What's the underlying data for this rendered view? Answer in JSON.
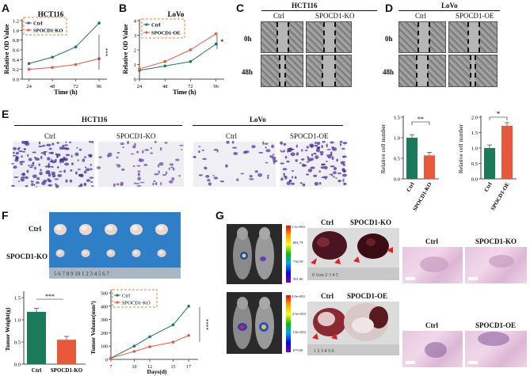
{
  "panel_labels": [
    "A",
    "B",
    "C",
    "D",
    "E",
    "F",
    "G"
  ],
  "A": {
    "title": "HCT116",
    "ylabel": "Relative OD Value",
    "xlabel": "Time (h)",
    "legend": [
      "Ctrl",
      "SPOCD1-KO"
    ],
    "ticks_x": [
      "24",
      "48",
      "72",
      "96"
    ],
    "ticks_y": [
      "0.0",
      "0.2",
      "0.4",
      "0.6",
      "0.8",
      "1.0",
      "1.2"
    ],
    "sig": "***"
  },
  "B": {
    "title": "LoVo",
    "ylabel": "Relative OD Value",
    "xlabel": "Time (h)",
    "legend": [
      "Ctrl",
      "SPOCD1-OE"
    ],
    "ticks_x": [
      "24",
      "48",
      "72",
      "96"
    ],
    "ticks_y": [
      "0",
      "1",
      "2",
      "3",
      "4"
    ],
    "sig": "*"
  },
  "C": {
    "title": "HCT116",
    "cols": [
      "Ctrl",
      "SPOCD1-KO"
    ],
    "rows": [
      "0h",
      "48h"
    ]
  },
  "D": {
    "title": "LoVo",
    "cols": [
      "Ctrl",
      "SPOCD1-OE"
    ],
    "rows": [
      "0h",
      "48h"
    ]
  },
  "E": {
    "title1": "HCT116",
    "cols1": [
      "Ctrl",
      "SPOCD1-KO"
    ],
    "title2": "LoVo",
    "cols2": [
      "Ctrl",
      "SPOCD1-OE"
    ],
    "bar1": {
      "ylabel": "Relative cell number",
      "categories": [
        "Ctrl",
        "SPOCD1-KO"
      ],
      "ticks_y": [
        "0.0",
        "0.5",
        "1.0",
        "1.5"
      ],
      "sig": "**"
    },
    "bar2": {
      "ylabel": "Relative cell number",
      "categories": [
        "Ctrl",
        "SPOCD1-OE"
      ],
      "ticks_y": [
        "0.0",
        "0.5",
        "1.0",
        "1.5",
        "2.0"
      ],
      "sig": "*"
    }
  },
  "F": {
    "row_labels": [
      "Ctrl",
      "SPOCD1-KO"
    ],
    "ruler": "5 6 7 8 9 10 1 2 3 4 5 6 7",
    "bar": {
      "ylabel": "Tumor Weight(g)",
      "categories": [
        "Ctrl",
        "SPOCD1-KO"
      ],
      "ticks_y": [
        "0.0",
        "0.5",
        "1.0",
        "1.5"
      ],
      "sig": "***"
    },
    "line": {
      "ylabel": "Tumor Volume(mm³)",
      "xlabel": "Days(d)",
      "legend": [
        "Ctrl",
        "SPOCD1-KO"
      ],
      "ticks_x": [
        "7",
        "10",
        "12",
        "15",
        "17"
      ],
      "ticks_y": [
        "0",
        "100",
        "200",
        "300",
        "400",
        "500"
      ],
      "sig": "****"
    }
  },
  "G": {
    "scale1": [
      "1.1e+003",
      "881.79",
      "730.59",
      "501.00"
    ],
    "scale2": [
      "4.0e+003",
      "2.9e+003",
      "1.8e+003",
      "679.00"
    ],
    "tumor1": [
      "Ctrl",
      "SPOCD1-KO"
    ],
    "tumor2": [
      "Ctrl",
      "SPOCD1-OE"
    ],
    "ruler1": "0 1cm 2 3 4 5",
    "ruler2": "1 2 3 4 5 6",
    "he1": [
      "Ctrl",
      "SPOCD1-KO"
    ],
    "he2": [
      "Ctrl",
      "SPOCD1-OE"
    ]
  },
  "colors": {
    "ctrl": "#1a7a5a",
    "ko": "#e8583a",
    "label_box": "#e8833a"
  },
  "chart_data": [
    {
      "type": "line",
      "panel": "A",
      "title": "HCT116",
      "xlabel": "Time (h)",
      "ylabel": "Relative OD Value",
      "x": [
        24,
        48,
        72,
        96
      ],
      "ylim": [
        0,
        1.2
      ],
      "series": [
        {
          "name": "Ctrl",
          "values": [
            0.32,
            0.45,
            0.66,
            1.15
          ]
        },
        {
          "name": "SPOCD1-KO",
          "values": [
            0.2,
            0.24,
            0.3,
            0.42
          ]
        }
      ]
    },
    {
      "type": "line",
      "panel": "B",
      "title": "LoVo",
      "xlabel": "Time (h)",
      "ylabel": "Relative OD Value",
      "x": [
        24,
        48,
        72,
        96
      ],
      "ylim": [
        0,
        4
      ],
      "series": [
        {
          "name": "Ctrl",
          "values": [
            0.6,
            0.9,
            1.2,
            2.4
          ]
        },
        {
          "name": "SPOCD1-OE",
          "values": [
            0.7,
            1.2,
            2.0,
            3.1
          ]
        }
      ]
    },
    {
      "type": "bar",
      "panel": "E",
      "categories": [
        "Ctrl",
        "SPOCD1-KO"
      ],
      "values": [
        1.0,
        0.57
      ],
      "ylabel": "Relative cell number",
      "ylim": [
        0,
        1.5
      ]
    },
    {
      "type": "bar",
      "panel": "E",
      "categories": [
        "Ctrl",
        "SPOCD1-OE"
      ],
      "values": [
        1.0,
        1.72
      ],
      "ylabel": "Relative cell number",
      "ylim": [
        0,
        2.0
      ]
    },
    {
      "type": "bar",
      "panel": "F",
      "categories": [
        "Ctrl",
        "SPOCD1-KO"
      ],
      "values": [
        1.18,
        0.55
      ],
      "ylabel": "Tumor Weight(g)",
      "ylim": [
        0,
        1.5
      ]
    },
    {
      "type": "line",
      "panel": "F",
      "xlabel": "Days(d)",
      "ylabel": "Tumor Volume(mm³)",
      "x": [
        7,
        10,
        12,
        15,
        17
      ],
      "ylim": [
        0,
        500
      ],
      "series": [
        {
          "name": "Ctrl",
          "values": [
            10,
            100,
            170,
            260,
            400
          ]
        },
        {
          "name": "SPOCD1-KO",
          "values": [
            10,
            60,
            95,
            130,
            180
          ]
        }
      ]
    }
  ]
}
